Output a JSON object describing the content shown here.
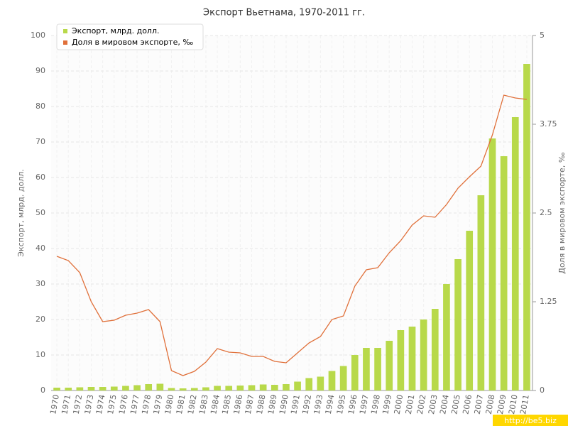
{
  "chart_data": {
    "type": "bar-line",
    "title": "Экспорт Вьетнама, 1970-2011 гг.",
    "y_label": "Экспорт, млрд. долл.",
    "y2_label": "Доля в мировом экспорте, ‰",
    "watermark": "http://be5.biz",
    "categories": [
      "1970",
      "1971",
      "1972",
      "1973",
      "1974",
      "1975",
      "1976",
      "1977",
      "1978",
      "1979",
      "1980",
      "1981",
      "1982",
      "1983",
      "1984",
      "1985",
      "1986",
      "1987",
      "1988",
      "1989",
      "1990",
      "1991",
      "1992",
      "1993",
      "1994",
      "1995",
      "1996",
      "1997",
      "1998",
      "1999",
      "2000",
      "2001",
      "2002",
      "2003",
      "2004",
      "2005",
      "2006",
      "2007",
      "2008",
      "2009",
      "2010",
      "2011"
    ],
    "series": [
      {
        "name": "Экспорт, млрд. долл.",
        "color": "#b8d94a",
        "type": "bar",
        "values": [
          0.8,
          0.8,
          0.9,
          1.0,
          1.0,
          1.1,
          1.3,
          1.5,
          1.8,
          1.9,
          0.7,
          0.6,
          0.7,
          0.9,
          1.3,
          1.3,
          1.4,
          1.5,
          1.7,
          1.6,
          1.8,
          2.5,
          3.5,
          3.9,
          5.5,
          6.9,
          10,
          12,
          12,
          14,
          17,
          18,
          20,
          23,
          30,
          37,
          45,
          55,
          71,
          66,
          77,
          92
        ]
      },
      {
        "name": "Доля в мировом экспорте, ‰",
        "color": "#e0703a",
        "type": "line",
        "axis": "y2",
        "values": [
          1.89,
          1.83,
          1.66,
          1.25,
          0.97,
          0.99,
          1.06,
          1.09,
          1.14,
          0.97,
          0.28,
          0.21,
          0.27,
          0.4,
          0.59,
          0.54,
          0.53,
          0.48,
          0.48,
          0.41,
          0.39,
          0.53,
          0.67,
          0.76,
          1.0,
          1.05,
          1.47,
          1.7,
          1.73,
          1.94,
          2.11,
          2.33,
          2.46,
          2.44,
          2.62,
          2.85,
          3.01,
          3.16,
          3.6,
          4.16,
          4.12,
          4.1
        ]
      }
    ],
    "ylim": [
      0,
      100
    ],
    "yticks": [
      0,
      10,
      20,
      30,
      40,
      50,
      60,
      70,
      80,
      90,
      100
    ],
    "y2lim": [
      0,
      5
    ],
    "y2ticks": [
      0,
      1.25,
      2.5,
      3.75,
      5
    ],
    "grid": true
  }
}
